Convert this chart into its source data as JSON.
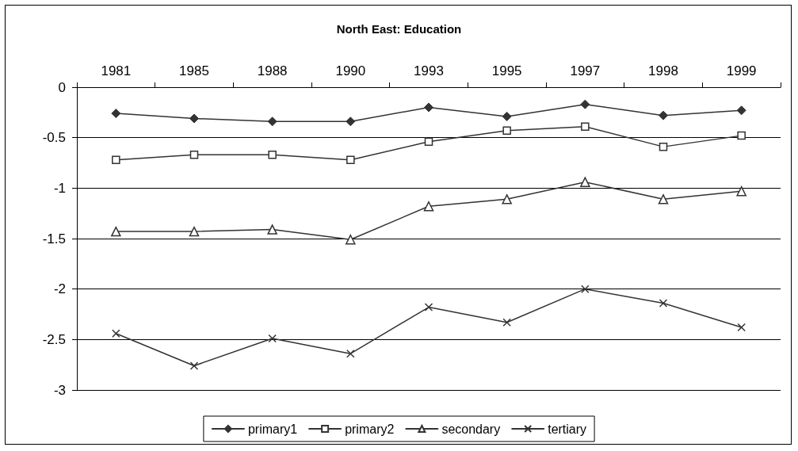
{
  "chart_data": {
    "type": "line",
    "title": "North East: Education",
    "categories": [
      "1981",
      "1985",
      "1988",
      "1990",
      "1993",
      "1995",
      "1997",
      "1998",
      "1999"
    ],
    "series": [
      {
        "name": "primary1",
        "color": "#333333",
        "marker": "diamond",
        "values": [
          -0.26,
          -0.31,
          -0.34,
          -0.34,
          -0.2,
          -0.29,
          -0.17,
          -0.28,
          -0.23
        ]
      },
      {
        "name": "primary2",
        "color": "#333333",
        "marker": "square",
        "values": [
          -0.72,
          -0.67,
          -0.67,
          -0.72,
          -0.54,
          -0.43,
          -0.39,
          -0.59,
          -0.48
        ]
      },
      {
        "name": "secondary",
        "color": "#333333",
        "marker": "triangle",
        "values": [
          -1.43,
          -1.43,
          -1.41,
          -1.51,
          -1.18,
          -1.11,
          -0.94,
          -1.11,
          -1.03
        ]
      },
      {
        "name": "tertiary",
        "color": "#333333",
        "marker": "cross",
        "values": [
          -2.44,
          -2.76,
          -2.49,
          -2.64,
          -2.18,
          -2.33,
          -2.0,
          -2.14,
          -2.38
        ]
      }
    ],
    "ylim": [
      -3,
      0
    ],
    "yticks": [
      -3,
      -2.5,
      -2,
      -1.5,
      -1,
      -0.5,
      0
    ],
    "grid": "y",
    "legend": "bottom",
    "line_style": "solid"
  }
}
